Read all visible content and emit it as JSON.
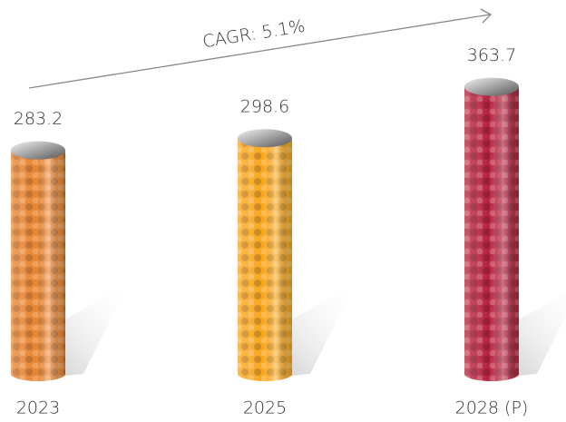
{
  "chart_data": {
    "type": "bar",
    "annotation": "CAGR: 5.1%",
    "categories": [
      "2023",
      "2025",
      "2028 (P)"
    ],
    "values": [
      283.2,
      298.6,
      363.7
    ],
    "value_labels": [
      "283.2",
      "298.6",
      "363.7"
    ],
    "colors": [
      "#e8832f",
      "#f8a51c",
      "#b5213c"
    ]
  }
}
